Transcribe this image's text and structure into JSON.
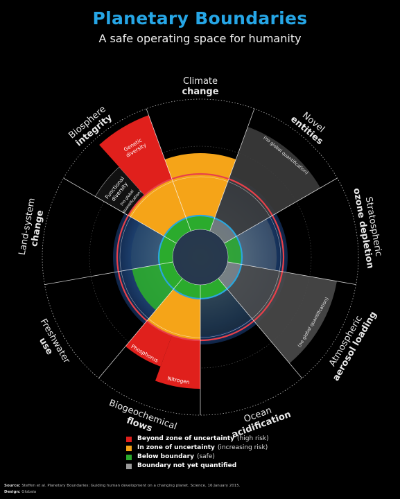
{
  "header": {
    "title": "Planetary Boundaries",
    "subtitle": "A safe operating space for humanity"
  },
  "colors": {
    "high_risk": "#e0201c",
    "increasing_risk": "#f5a418",
    "safe": "#2bab2d",
    "not_quantified": "#9a9a9a",
    "boundary_ring": "#e8404a",
    "safe_ring": "#2aa6dd",
    "title": "#26a6e6"
  },
  "diagram": {
    "categories": [
      {
        "name_line1": "Climate",
        "name_line2": "change",
        "status": "increasing_risk"
      },
      {
        "name_line1": "Novel",
        "name_line2": "entities",
        "status": "not_quantified",
        "note": "(no global quantification)"
      },
      {
        "name_line1": "Stratospheric",
        "name_line2": "ozone depletion",
        "status": "safe"
      },
      {
        "name_line1": "Atmospheric",
        "name_line2": "aerosol loading",
        "status": "not_quantified",
        "note": "(no global quantification)"
      },
      {
        "name_line1": "Ocean",
        "name_line2": "acidification",
        "status": "safe"
      },
      {
        "name_line1": "Biogeochemical",
        "name_line2": "flows",
        "status": "high_risk",
        "sub": [
          "Phosphorus",
          "Nitrogen"
        ]
      },
      {
        "name_line1": "Freshwater",
        "name_line2": "use",
        "status": "safe"
      },
      {
        "name_line1": "Land-system",
        "name_line2": "change",
        "status": "increasing_risk"
      },
      {
        "name_line1": "Biosphere",
        "name_line2": "integrity",
        "status": "high_risk",
        "sub": [
          "Functional diversity",
          "Genetic diversity"
        ],
        "sub_note": "(no global quantification)"
      }
    ],
    "segment_labels": {
      "genetic_diversity": [
        "Genetic",
        "diversity"
      ],
      "functional_diversity": [
        "Functional",
        "diversity"
      ],
      "functional_note": [
        "(no global",
        "quantification)"
      ],
      "phosphorus": "Phosphorus",
      "nitrogen": "Nitrogen"
    }
  },
  "legend": [
    {
      "bold": "Beyond zone of uncertainty",
      "rest": "(high risk)",
      "color": "#e0201c"
    },
    {
      "bold": "In zone of uncertainty",
      "rest": "(increasing risk)",
      "color": "#f5a418"
    },
    {
      "bold": "Below boundary",
      "rest": "(safe)",
      "color": "#2bab2d"
    },
    {
      "bold": "Boundary not yet quantified",
      "rest": "",
      "color": "#9a9a9a"
    }
  ],
  "footer": {
    "source_label": "Source:",
    "source_text": "Steffen et al. Planetary Boundaries: Guiding human development on a changing planet. Science, 16 January 2015.",
    "design_label": "Design:",
    "design_text": "Globaia"
  }
}
